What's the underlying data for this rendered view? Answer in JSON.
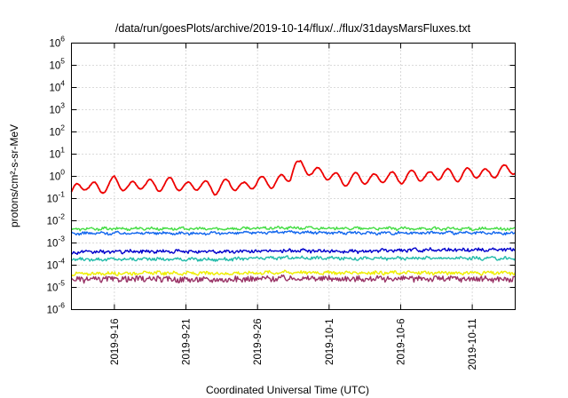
{
  "chart_data": {
    "type": "line",
    "title": "/data/run/goesPlots/archive/2019-10-14/flux/../flux/31daysMarsFluxes.txt",
    "xlabel": "Coordinated Universal Time (UTC)",
    "ylabel": "protons/cm²-s-sr-MeV",
    "y_scale": "log",
    "ylim": [
      1e-06,
      1000000.0
    ],
    "y_ticks": [
      {
        "value": 1e-06,
        "base": "10",
        "exp": "-6"
      },
      {
        "value": 1e-05,
        "base": "10",
        "exp": "-5"
      },
      {
        "value": 0.0001,
        "base": "10",
        "exp": "-4"
      },
      {
        "value": 0.001,
        "base": "10",
        "exp": "-3"
      },
      {
        "value": 0.01,
        "base": "10",
        "exp": "-2"
      },
      {
        "value": 0.1,
        "base": "10",
        "exp": "-1"
      },
      {
        "value": 1,
        "base": "10",
        "exp": "0"
      },
      {
        "value": 10,
        "base": "10",
        "exp": "1"
      },
      {
        "value": 100,
        "base": "10",
        "exp": "2"
      },
      {
        "value": 1000,
        "base": "10",
        "exp": "3"
      },
      {
        "value": 10000,
        "base": "10",
        "exp": "4"
      },
      {
        "value": 100000,
        "base": "10",
        "exp": "5"
      },
      {
        "value": 1000000,
        "base": "10",
        "exp": "6"
      }
    ],
    "xlim": [
      "2019-09-13",
      "2019-10-14"
    ],
    "x_ticks": [
      "2019-9-16",
      "2019-9-21",
      "2019-9-26",
      "2019-10-1",
      "2019-10-6",
      "2019-10-11"
    ],
    "grid": true,
    "series": [
      {
        "color": "#ee0000",
        "x": [
          "2019-09-13",
          "2019-09-14",
          "2019-09-15",
          "2019-09-16",
          "2019-09-17",
          "2019-09-18",
          "2019-09-19",
          "2019-09-20",
          "2019-09-21",
          "2019-09-22",
          "2019-09-23",
          "2019-09-24",
          "2019-09-25",
          "2019-09-26",
          "2019-09-27",
          "2019-09-28",
          "2019-09-29",
          "2019-09-30",
          "2019-10-01",
          "2019-10-02",
          "2019-10-03",
          "2019-10-04",
          "2019-10-05",
          "2019-10-06",
          "2019-10-07",
          "2019-10-08",
          "2019-10-09",
          "2019-10-10",
          "2019-10-11",
          "2019-10-12",
          "2019-10-13",
          "2019-10-14"
        ],
        "values": [
          0.2,
          0.45,
          0.25,
          0.6,
          0.3,
          0.5,
          0.35,
          0.55,
          0.3,
          0.45,
          0.25,
          0.5,
          0.3,
          0.6,
          0.5,
          0.8,
          3.0,
          1.5,
          1.2,
          0.6,
          0.9,
          0.7,
          1.0,
          0.8,
          1.2,
          0.9,
          1.4,
          1.0,
          1.6,
          1.2,
          1.8,
          2.2
        ]
      },
      {
        "color": "#44dd44",
        "x": [
          "2019-09-13",
          "2019-09-18",
          "2019-09-23",
          "2019-09-28",
          "2019-10-03",
          "2019-10-08",
          "2019-10-14"
        ],
        "values": [
          0.0042,
          0.0045,
          0.0043,
          0.0048,
          0.0045,
          0.0044,
          0.0043
        ]
      },
      {
        "color": "#1166ee",
        "x": [
          "2019-09-13",
          "2019-09-18",
          "2019-09-23",
          "2019-09-28",
          "2019-10-03",
          "2019-10-08",
          "2019-10-14"
        ],
        "values": [
          0.0027,
          0.0028,
          0.0027,
          0.0031,
          0.0028,
          0.0029,
          0.0027
        ]
      },
      {
        "color": "#0000cc",
        "x": [
          "2019-09-13",
          "2019-09-18",
          "2019-09-23",
          "2019-09-28",
          "2019-10-03",
          "2019-10-08",
          "2019-10-14"
        ],
        "values": [
          0.00038,
          0.00042,
          0.0004,
          0.00045,
          0.00042,
          0.0005,
          0.0005
        ]
      },
      {
        "color": "#22bbaa",
        "x": [
          "2019-09-13",
          "2019-09-18",
          "2019-09-23",
          "2019-09-28",
          "2019-10-03",
          "2019-10-08",
          "2019-10-14"
        ],
        "values": [
          0.00018,
          0.00019,
          0.00018,
          0.00022,
          0.0002,
          0.00021,
          0.0002
        ]
      },
      {
        "color": "#eeee00",
        "x": [
          "2019-09-13",
          "2019-09-18",
          "2019-09-23",
          "2019-09-28",
          "2019-10-03",
          "2019-10-08",
          "2019-10-14"
        ],
        "values": [
          4e-05,
          4.5e-05,
          4.2e-05,
          4.8e-05,
          4.5e-05,
          4.6e-05,
          4.4e-05
        ]
      },
      {
        "color": "#993366",
        "x": [
          "2019-09-13",
          "2019-09-18",
          "2019-09-23",
          "2019-09-28",
          "2019-10-03",
          "2019-10-08",
          "2019-10-14"
        ],
        "values": [
          2.2e-05,
          2.4e-05,
          2.2e-05,
          2.6e-05,
          2.4e-05,
          2.5e-05,
          2.3e-05
        ]
      }
    ]
  }
}
